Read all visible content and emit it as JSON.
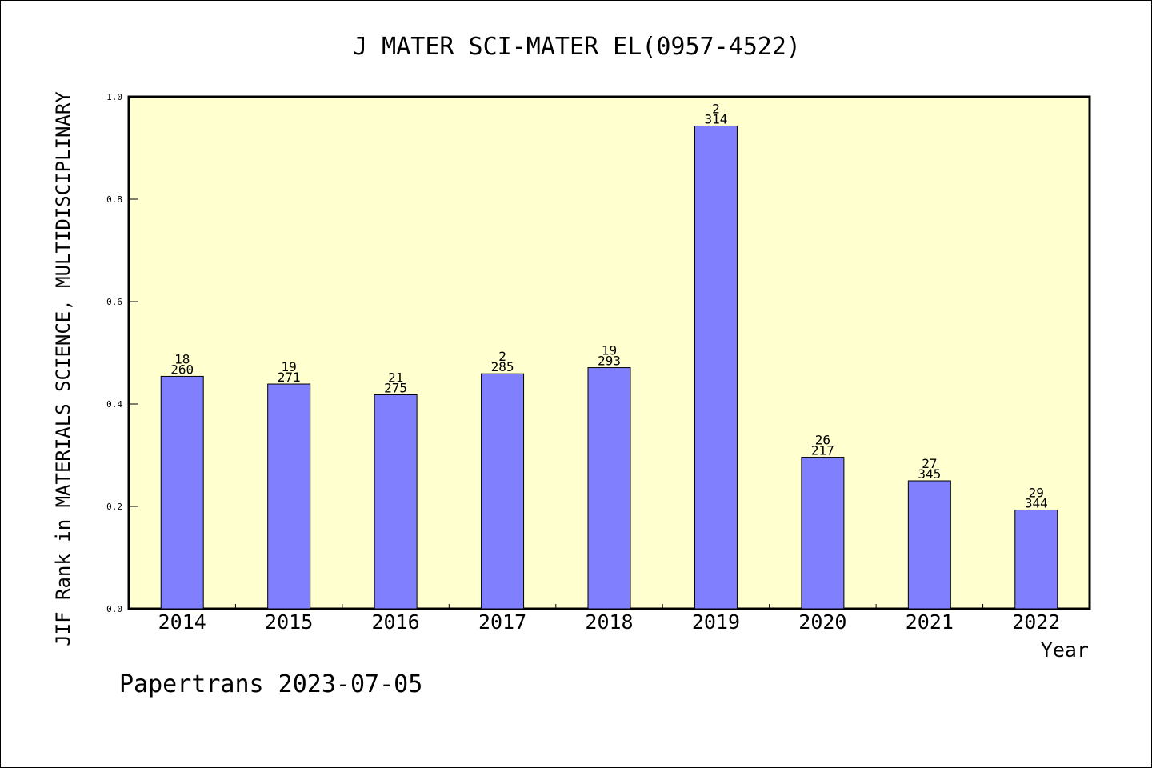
{
  "colors": {
    "plot_background": "#ffffd0",
    "bar_fill": "#8080ff",
    "axis": "#000000"
  },
  "chart_data": {
    "type": "bar",
    "title": "J MATER SCI-MATER EL(0957-4522)",
    "xlabel": "Year",
    "ylabel": "JIF Rank in MATERIALS SCIENCE, MULTIDISCIPLINARY",
    "ylim": [
      0,
      1.0
    ],
    "yticks": [
      "0.0",
      "0.2",
      "0.4",
      "0.6",
      "0.8",
      "1.0"
    ],
    "grid": false,
    "categories": [
      "2014",
      "2015",
      "2016",
      "2017",
      "2018",
      "2019",
      "2020",
      "2021",
      "2022"
    ],
    "values": [
      0.454,
      0.439,
      0.418,
      0.459,
      0.471,
      0.943,
      0.296,
      0.25,
      0.193
    ],
    "labels_top": [
      "18",
      "19",
      "21",
      "2",
      "19",
      "2",
      "26",
      "27",
      "29"
    ],
    "labels_bottom": [
      "260",
      "271",
      "275",
      "285",
      "293",
      "314",
      "217",
      "345",
      "344"
    ]
  },
  "footer": "Papertrans 2023-07-05"
}
